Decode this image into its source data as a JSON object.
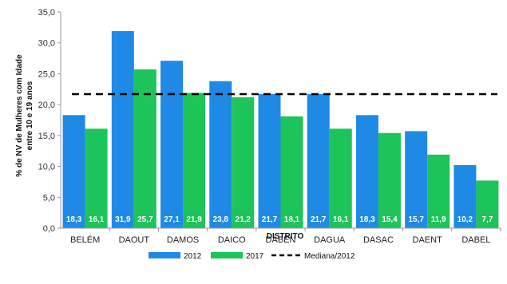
{
  "chart_data": {
    "type": "bar",
    "title": "",
    "xlabel": "DISTRITO",
    "ylabel_line1": "% de NV de Mulheres com Idade",
    "ylabel_line2": "entre 10 e 19 anos",
    "ylim": [
      0,
      35
    ],
    "yticks": [
      "0,0",
      "5,0",
      "10,0",
      "15,0",
      "20,0",
      "25,0",
      "30,0",
      "35,0"
    ],
    "ytick_values": [
      0,
      5,
      10,
      15,
      20,
      25,
      30,
      35
    ],
    "grid": false,
    "legend_position": "bottom",
    "categories": [
      "BELÉM",
      "DAOUT",
      "DAMOS",
      "DAICO",
      "DABEN",
      "DAGUA",
      "DASAC",
      "DAENT",
      "DABEL"
    ],
    "series": [
      {
        "name": "2012",
        "color": "#1f8ae6",
        "values": [
          18.3,
          31.9,
          27.1,
          23.8,
          21.7,
          21.7,
          18.3,
          15.7,
          10.2
        ],
        "labels": [
          "18,3",
          "31,9",
          "27,1",
          "23,8",
          "21,7",
          "21,7",
          "18,3",
          "15,7",
          "10,2"
        ]
      },
      {
        "name": "2017",
        "color": "#1cc45a",
        "values": [
          16.1,
          25.7,
          21.9,
          21.2,
          18.1,
          16.1,
          15.4,
          11.9,
          7.7
        ],
        "labels": [
          "16,1",
          "25,7",
          "21,9",
          "21,2",
          "18,1",
          "16,1",
          "15,4",
          "11,9",
          "7,7"
        ]
      }
    ],
    "reference_line": {
      "name": "Mediana/2012",
      "value": 21.7,
      "style": "dashed",
      "color": "#000000"
    }
  }
}
